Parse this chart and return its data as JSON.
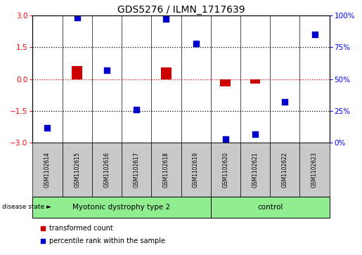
{
  "title": "GDS5276 / ILMN_1717639",
  "samples": [
    "GSM1102614",
    "GSM1102615",
    "GSM1102616",
    "GSM1102617",
    "GSM1102618",
    "GSM1102619",
    "GSM1102620",
    "GSM1102621",
    "GSM1102622",
    "GSM1102623"
  ],
  "transformed_count": [
    0.0,
    0.62,
    0.0,
    0.0,
    0.55,
    0.0,
    -0.35,
    -0.22,
    0.0,
    0.0
  ],
  "percentile_rank": [
    12,
    98,
    57,
    26,
    97,
    78,
    3,
    7,
    32,
    85
  ],
  "disease_groups": [
    {
      "label": "Myotonic dystrophy type 2",
      "start": 0,
      "end": 5,
      "color": "#90EE90"
    },
    {
      "label": "control",
      "start": 6,
      "end": 9,
      "color": "#90EE90"
    }
  ],
  "bar_color": "#CC0000",
  "dot_color": "#0000CC",
  "ylim_left": [
    -3,
    3
  ],
  "ylim_right": [
    0,
    100
  ],
  "yticks_left": [
    -3,
    -1.5,
    0,
    1.5,
    3
  ],
  "yticks_right": [
    0,
    25,
    50,
    75,
    100
  ],
  "hlines": [
    1.5,
    -1.5
  ],
  "bg_color": "#C8C8C8",
  "legend_red_label": "transformed count",
  "legend_blue_label": "percentile rank within the sample",
  "disease_state_label": "disease state",
  "bar_width": 0.35,
  "dot_size": 28,
  "n_samples": 10
}
